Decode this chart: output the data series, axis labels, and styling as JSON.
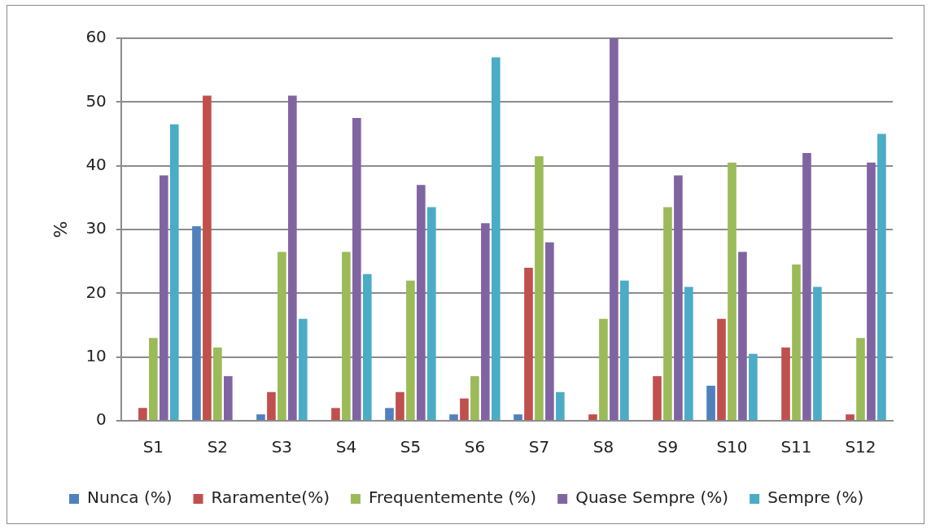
{
  "chart_data": {
    "type": "bar",
    "ylabel": "%",
    "categories": [
      "S1",
      "S2",
      "S3",
      "S4",
      "S5",
      "S6",
      "S7",
      "S8",
      "S9",
      "S10",
      "S11",
      "S12"
    ],
    "series": [
      {
        "name": "Nunca (%)",
        "color": "#4f81bd",
        "values": [
          0,
          30.5,
          1,
          0,
          2,
          1,
          1,
          0,
          0,
          5.5,
          0,
          0
        ]
      },
      {
        "name": "Raramente(%)",
        "color": "#c0504d",
        "values": [
          2,
          51,
          4.5,
          2,
          4.5,
          3.5,
          24,
          1,
          7,
          16,
          11.5,
          1
        ]
      },
      {
        "name": "Frequentemente (%)",
        "color": "#9bbb59",
        "values": [
          13,
          11.5,
          26.5,
          26.5,
          22,
          7,
          41.5,
          16,
          33.5,
          40.5,
          24.5,
          13
        ]
      },
      {
        "name": "Quase Sempre (%)",
        "color": "#8064a2",
        "values": [
          38.5,
          7,
          51,
          47.5,
          37,
          31,
          28,
          60,
          38.5,
          26.5,
          42,
          40.5
        ]
      },
      {
        "name": "Sempre (%)",
        "color": "#4bacc6",
        "values": [
          46.5,
          0,
          16,
          23,
          33.5,
          57,
          4.5,
          22,
          21,
          10.5,
          21,
          45
        ]
      }
    ],
    "ylim": [
      0,
      60
    ],
    "yticks": [
      0,
      10,
      20,
      30,
      40,
      50,
      60
    ],
    "grid": "y",
    "legend": "bottom"
  }
}
